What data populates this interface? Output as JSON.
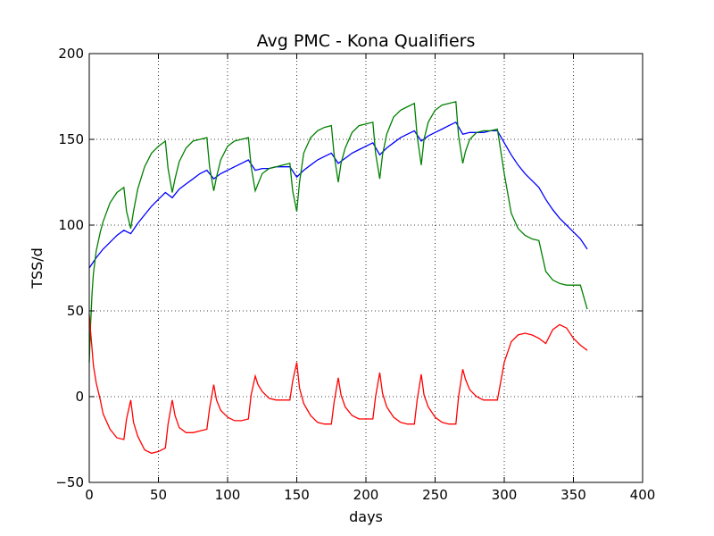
{
  "chart_data": {
    "type": "line",
    "title": "Avg PMC - Kona Qualifiers",
    "xlabel": "days",
    "ylabel": "TSS/d",
    "xlim": [
      0,
      400
    ],
    "ylim": [
      -50,
      200
    ],
    "xticks": [
      "0",
      "50",
      "100",
      "150",
      "200",
      "250",
      "300",
      "350",
      "400"
    ],
    "yticks": [
      "−50",
      "0",
      "50",
      "100",
      "150",
      "200"
    ],
    "grid": true,
    "series": [
      {
        "color": "#0000ff",
        "x": [
          0,
          5,
          10,
          15,
          20,
          25,
          30,
          35,
          40,
          45,
          50,
          55,
          60,
          65,
          70,
          75,
          80,
          85,
          90,
          95,
          100,
          105,
          110,
          115,
          120,
          125,
          130,
          135,
          140,
          145,
          150,
          155,
          160,
          165,
          170,
          175,
          180,
          185,
          190,
          195,
          200,
          205,
          210,
          215,
          220,
          225,
          230,
          235,
          240,
          245,
          250,
          255,
          260,
          265,
          270,
          275,
          280,
          285,
          290,
          295,
          300,
          305,
          310,
          315,
          320,
          325,
          330,
          335,
          340,
          345,
          350,
          355,
          360
        ],
        "y": [
          75,
          81,
          86,
          90,
          94,
          97,
          95,
          101,
          106,
          111,
          115,
          119,
          116,
          121,
          124,
          127,
          130,
          132,
          127,
          130,
          132,
          134,
          136,
          138,
          132,
          133,
          133,
          134,
          134,
          134,
          128,
          132,
          135,
          138,
          140,
          142,
          136,
          139,
          142,
          144,
          146,
          148,
          141,
          145,
          148,
          151,
          153,
          155,
          149,
          152,
          154,
          156,
          158,
          160,
          153,
          154,
          154,
          154,
          155,
          155,
          148,
          141,
          135,
          130,
          126,
          122,
          115,
          109,
          104,
          100,
          96,
          92,
          86
        ]
      },
      {
        "color": "#008000",
        "x": [
          0,
          1,
          2,
          3,
          5,
          8,
          10,
          15,
          20,
          25,
          27,
          30,
          32,
          35,
          40,
          45,
          50,
          55,
          57,
          60,
          62,
          65,
          70,
          75,
          80,
          85,
          87,
          90,
          92,
          95,
          100,
          105,
          110,
          115,
          117,
          120,
          122,
          125,
          130,
          135,
          140,
          145,
          147,
          150,
          152,
          155,
          160,
          165,
          170,
          175,
          177,
          180,
          182,
          185,
          190,
          195,
          200,
          205,
          207,
          210,
          212,
          215,
          220,
          225,
          230,
          235,
          237,
          240,
          242,
          245,
          250,
          255,
          260,
          265,
          267,
          270,
          272,
          275,
          280,
          285,
          290,
          295,
          300,
          305,
          310,
          315,
          320,
          325,
          330,
          335,
          340,
          345,
          350,
          355,
          360
        ],
        "y": [
          20,
          42,
          60,
          72,
          85,
          96,
          102,
          113,
          119,
          122,
          108,
          98,
          108,
          121,
          134,
          142,
          146,
          149,
          133,
          119,
          127,
          137,
          145,
          149,
          150,
          151,
          134,
          120,
          128,
          138,
          146,
          149,
          150,
          151,
          134,
          120,
          124,
          130,
          133,
          134,
          135,
          136,
          120,
          108,
          125,
          142,
          151,
          155,
          157,
          158,
          141,
          125,
          136,
          145,
          154,
          158,
          159,
          160,
          142,
          127,
          141,
          153,
          163,
          167,
          169,
          171,
          152,
          135,
          150,
          160,
          167,
          170,
          171,
          172,
          152,
          136,
          143,
          150,
          154,
          155,
          155,
          156,
          130,
          107,
          98,
          94,
          92,
          91,
          73,
          68,
          66,
          65,
          65,
          65,
          51
        ]
      },
      {
        "color": "#ff0000",
        "x": [
          0,
          1,
          2,
          3,
          5,
          8,
          10,
          15,
          20,
          25,
          27,
          30,
          32,
          35,
          40,
          45,
          50,
          55,
          57,
          60,
          62,
          65,
          70,
          75,
          80,
          85,
          87,
          90,
          92,
          95,
          100,
          105,
          110,
          115,
          117,
          120,
          122,
          125,
          130,
          135,
          140,
          145,
          147,
          150,
          152,
          155,
          160,
          165,
          170,
          175,
          177,
          180,
          182,
          185,
          190,
          195,
          200,
          205,
          207,
          210,
          212,
          215,
          220,
          225,
          230,
          235,
          237,
          240,
          242,
          245,
          250,
          255,
          260,
          265,
          267,
          270,
          272,
          275,
          280,
          285,
          290,
          295,
          300,
          305,
          310,
          315,
          320,
          325,
          330,
          335,
          340,
          345,
          350,
          355,
          360
        ],
        "y": [
          48,
          38,
          28,
          18,
          8,
          -2,
          -10,
          -19,
          -24,
          -25,
          -13,
          -2,
          -15,
          -23,
          -31,
          -33,
          -32,
          -30,
          -16,
          -2,
          -11,
          -18,
          -21,
          -21,
          -20,
          -19,
          -7,
          7,
          -2,
          -8,
          -12,
          -14,
          -14,
          -13,
          1,
          12,
          7,
          3,
          -1,
          -2,
          -2,
          -2,
          9,
          20,
          5,
          -4,
          -11,
          -15,
          -16,
          -16,
          -3,
          11,
          1,
          -6,
          -11,
          -13,
          -13,
          -13,
          0,
          14,
          2,
          -6,
          -12,
          -15,
          -16,
          -16,
          -2,
          13,
          1,
          -6,
          -12,
          -15,
          -16,
          -16,
          0,
          16,
          10,
          4,
          0,
          -2,
          -2,
          -2,
          20,
          32,
          36,
          37,
          36,
          34,
          31,
          39,
          42,
          40,
          34,
          30,
          27
        ]
      }
    ]
  }
}
